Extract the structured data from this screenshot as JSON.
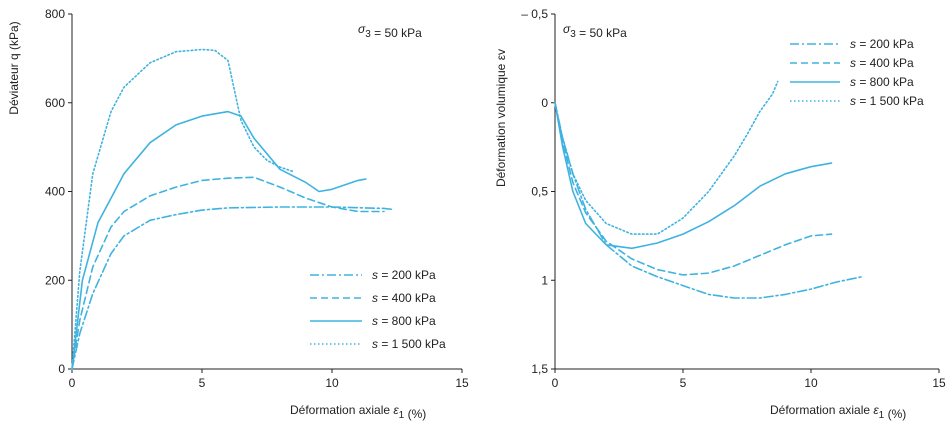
{
  "series_color": "#3fb3e0",
  "chart_data": [
    {
      "type": "line",
      "annotation": "σ3 = 50 kPa",
      "xlabel": "Déformation axiale ε1 (%)",
      "ylabel": "Déviateur q (kPa)",
      "xlim": [
        0,
        15
      ],
      "ylim": [
        0,
        800
      ],
      "xticks": [
        0,
        5,
        10,
        15
      ],
      "xtick_labels": [
        "0",
        "5",
        "10",
        "15"
      ],
      "yticks": [
        0,
        200,
        400,
        600,
        800
      ],
      "ytick_labels": [
        "0",
        "200",
        "400",
        "600",
        "800"
      ],
      "legend_position": "bottom-right",
      "series": [
        {
          "name": "s = 200 kPa",
          "dash": "dashdot",
          "points": [
            [
              0,
              0
            ],
            [
              0.3,
              80
            ],
            [
              0.8,
              170
            ],
            [
              1.5,
              260
            ],
            [
              2,
              300
            ],
            [
              3,
              335
            ],
            [
              4,
              348
            ],
            [
              5,
              358
            ],
            [
              6,
              363
            ],
            [
              8,
              365
            ],
            [
              10,
              365
            ],
            [
              12,
              362
            ],
            [
              12.3,
              360
            ]
          ]
        },
        {
          "name": "s = 400 kPa",
          "dash": "dashed",
          "points": [
            [
              0,
              0
            ],
            [
              0.3,
              110
            ],
            [
              0.8,
              230
            ],
            [
              1.5,
              320
            ],
            [
              2,
              355
            ],
            [
              3,
              390
            ],
            [
              3.5,
              400
            ],
            [
              4,
              410
            ],
            [
              5,
              425
            ],
            [
              6,
              430
            ],
            [
              7,
              432
            ],
            [
              8,
              410
            ],
            [
              9,
              385
            ],
            [
              10,
              365
            ],
            [
              11,
              355
            ],
            [
              12,
              355
            ]
          ]
        },
        {
          "name": "s = 800 kPa",
          "dash": "solid",
          "points": [
            [
              0,
              0
            ],
            [
              0.4,
              200
            ],
            [
              1,
              330
            ],
            [
              2,
              440
            ],
            [
              3,
              510
            ],
            [
              4,
              550
            ],
            [
              5,
              570
            ],
            [
              6,
              580
            ],
            [
              6.5,
              570
            ],
            [
              7,
              520
            ],
            [
              8,
              450
            ],
            [
              9,
              420
            ],
            [
              9.5,
              400
            ],
            [
              10,
              405
            ],
            [
              11,
              425
            ],
            [
              11.3,
              428
            ]
          ]
        },
        {
          "name": "s = 1 500 kPa",
          "dash": "dotted",
          "points": [
            [
              0,
              0
            ],
            [
              0.3,
              220
            ],
            [
              0.8,
              440
            ],
            [
              1.5,
              580
            ],
            [
              2,
              635
            ],
            [
              3,
              690
            ],
            [
              4,
              715
            ],
            [
              5,
              720
            ],
            [
              5.5,
              718
            ],
            [
              6,
              695
            ],
            [
              6.5,
              560
            ],
            [
              7,
              500
            ],
            [
              7.5,
              470
            ],
            [
              8,
              455
            ],
            [
              8.5,
              445
            ]
          ]
        }
      ]
    },
    {
      "type": "line",
      "annotation": "σ3 = 50 kPa",
      "xlabel": "Déformation axiale ε1 (%)",
      "ylabel": "Déformation volumique εv",
      "xlim": [
        0,
        15
      ],
      "ylim": [
        -0.5,
        1.5
      ],
      "y_inverted": true,
      "xticks": [
        0,
        5,
        10,
        15
      ],
      "xtick_labels": [
        "0",
        "5",
        "10",
        "15"
      ],
      "yticks": [
        -0.5,
        0,
        0.5,
        1,
        1.5
      ],
      "ytick_labels": [
        "– 0,5",
        "0",
        "0,5",
        "1",
        "1,5"
      ],
      "legend_position": "top-right",
      "series": [
        {
          "name": "s = 200 kPa",
          "dash": "dashdot",
          "points": [
            [
              0,
              0
            ],
            [
              0.3,
              0.2
            ],
            [
              0.7,
              0.4
            ],
            [
              1.2,
              0.6
            ],
            [
              2,
              0.8
            ],
            [
              3,
              0.92
            ],
            [
              4,
              0.98
            ],
            [
              5,
              1.03
            ],
            [
              6,
              1.08
            ],
            [
              7,
              1.1
            ],
            [
              8,
              1.1
            ],
            [
              9,
              1.08
            ],
            [
              10,
              1.05
            ],
            [
              11,
              1.01
            ],
            [
              12,
              0.98
            ]
          ]
        },
        {
          "name": "s = 400 kPa",
          "dash": "dashed",
          "points": [
            [
              0,
              0
            ],
            [
              0.3,
              0.22
            ],
            [
              0.7,
              0.45
            ],
            [
              1.2,
              0.62
            ],
            [
              2,
              0.78
            ],
            [
              3,
              0.88
            ],
            [
              4,
              0.94
            ],
            [
              5,
              0.97
            ],
            [
              6,
              0.96
            ],
            [
              7,
              0.92
            ],
            [
              8,
              0.86
            ],
            [
              9,
              0.8
            ],
            [
              10,
              0.75
            ],
            [
              10.8,
              0.74
            ]
          ]
        },
        {
          "name": "s = 800 kPa",
          "dash": "solid",
          "points": [
            [
              0,
              0
            ],
            [
              0.3,
              0.25
            ],
            [
              0.7,
              0.5
            ],
            [
              1.2,
              0.68
            ],
            [
              2,
              0.8
            ],
            [
              3,
              0.82
            ],
            [
              4,
              0.79
            ],
            [
              5,
              0.74
            ],
            [
              6,
              0.67
            ],
            [
              7,
              0.58
            ],
            [
              8,
              0.47
            ],
            [
              9,
              0.4
            ],
            [
              10,
              0.36
            ],
            [
              10.8,
              0.34
            ]
          ]
        },
        {
          "name": "s = 1 500 kPa",
          "dash": "dotted",
          "points": [
            [
              0,
              0
            ],
            [
              0.3,
              0.2
            ],
            [
              0.7,
              0.4
            ],
            [
              1.2,
              0.55
            ],
            [
              2,
              0.68
            ],
            [
              3,
              0.74
            ],
            [
              4,
              0.74
            ],
            [
              5,
              0.65
            ],
            [
              6,
              0.5
            ],
            [
              7,
              0.3
            ],
            [
              7.5,
              0.18
            ],
            [
              8,
              0.05
            ],
            [
              8.5,
              -0.05
            ],
            [
              8.7,
              -0.12
            ]
          ]
        }
      ]
    }
  ]
}
